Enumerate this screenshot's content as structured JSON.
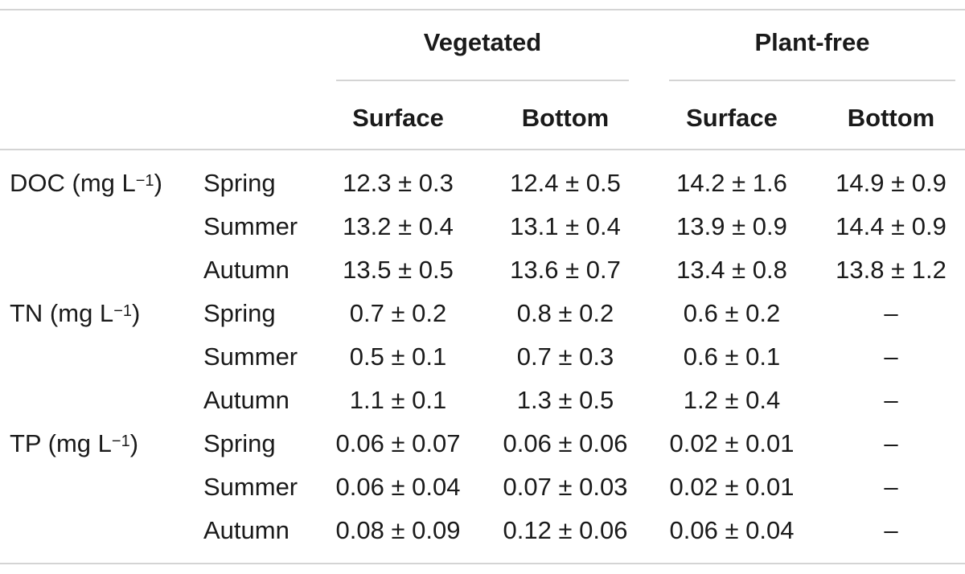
{
  "headers": {
    "groups": [
      "Vegetated",
      "Plant-free"
    ],
    "subs": [
      "Surface",
      "Bottom",
      "Surface",
      "Bottom"
    ]
  },
  "params": [
    {
      "name": "DOC (mg L",
      "sup": "−1",
      "close": ")"
    },
    {
      "name": "TN (mg L",
      "sup": "−1",
      "close": ")"
    },
    {
      "name": "TP (mg L",
      "sup": "−1",
      "close": ")"
    }
  ],
  "rows": [
    {
      "season": "Spring",
      "values": [
        "12.3 ± 0.3",
        "12.4 ± 0.5",
        "14.2 ± 1.6",
        "14.9 ± 0.9"
      ]
    },
    {
      "season": "Summer",
      "values": [
        "13.2 ± 0.4",
        "13.1 ± 0.4",
        "13.9 ± 0.9",
        "14.4 ± 0.9"
      ]
    },
    {
      "season": "Autumn",
      "values": [
        "13.5 ± 0.5",
        "13.6 ± 0.7",
        "13.4 ± 0.8",
        "13.8 ± 1.2"
      ]
    },
    {
      "season": "Spring",
      "values": [
        "0.7 ± 0.2",
        "0.8 ± 0.2",
        "0.6 ± 0.2",
        "–"
      ]
    },
    {
      "season": "Summer",
      "values": [
        "0.5 ± 0.1",
        "0.7 ± 0.3",
        "0.6 ± 0.1",
        "–"
      ]
    },
    {
      "season": "Autumn",
      "values": [
        "1.1 ± 0.1",
        "1.3 ± 0.5",
        "1.2 ± 0.4",
        "–"
      ]
    },
    {
      "season": "Spring",
      "values": [
        "0.06 ± 0.07",
        "0.06 ± 0.06",
        "0.02 ± 0.01",
        "–"
      ]
    },
    {
      "season": "Summer",
      "values": [
        "0.06 ± 0.04",
        "0.07 ± 0.03",
        "0.02 ± 0.01",
        "–"
      ]
    },
    {
      "season": "Autumn",
      "values": [
        "0.08 ± 0.09",
        "0.12 ± 0.06",
        "0.06 ± 0.04",
        "–"
      ]
    }
  ]
}
